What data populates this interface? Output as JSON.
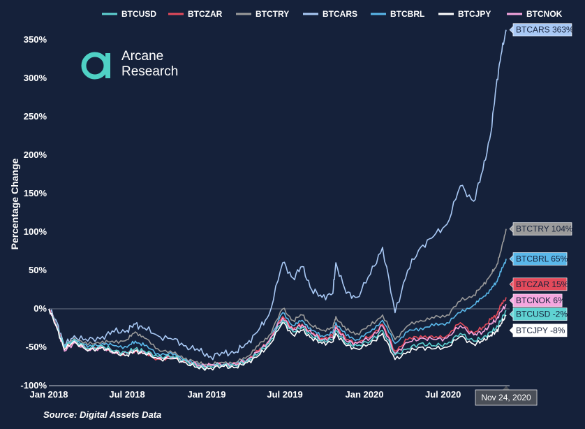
{
  "logo": {
    "line1": "Arcane",
    "line2": "Research"
  },
  "source": "Source: Digital Assets Data",
  "chart_data": {
    "type": "line",
    "title": "",
    "xlabel": "",
    "ylabel": "Percentage Change",
    "ylim": [
      -100,
      370
    ],
    "yticks": [
      -100,
      -50,
      0,
      50,
      100,
      150,
      200,
      250,
      300,
      350
    ],
    "ytick_labels": [
      "-100%",
      "-50%",
      "0%",
      "50%",
      "100%",
      "150%",
      "200%",
      "250%",
      "300%",
      "350%"
    ],
    "xlim": [
      "2018-01-01",
      "2020-12-02"
    ],
    "xticks": [
      "2018-01-01",
      "2018-07-01",
      "2019-01-01",
      "2019-07-01",
      "2020-01-01",
      "2020-07-01"
    ],
    "xtick_labels": [
      "Jan 2018",
      "Jul 2018",
      "Jan 2019",
      "Jul 2019",
      "Jan 2020",
      "Jul 2020"
    ],
    "crosshair_label": "Nov 24, 2020",
    "crosshair_date": "2020-11-24",
    "legend_position": "top",
    "zero_line": true,
    "x": [
      "2018-01-01",
      "2018-01-20",
      "2018-02-06",
      "2018-03-01",
      "2018-04-01",
      "2018-05-05",
      "2018-06-01",
      "2018-07-01",
      "2018-07-20",
      "2018-08-10",
      "2018-09-10",
      "2018-10-15",
      "2018-11-14",
      "2018-12-15",
      "2019-01-10",
      "2019-02-10",
      "2019-03-10",
      "2019-04-05",
      "2019-05-01",
      "2019-05-25",
      "2019-06-26",
      "2019-07-20",
      "2019-08-10",
      "2019-09-01",
      "2019-09-25",
      "2019-10-20",
      "2019-10-27",
      "2019-11-20",
      "2019-12-15",
      "2020-01-15",
      "2020-02-12",
      "2020-03-12",
      "2020-04-10",
      "2020-05-10",
      "2020-06-10",
      "2020-07-10",
      "2020-08-10",
      "2020-09-10",
      "2020-10-01",
      "2020-10-20",
      "2020-11-01",
      "2020-11-12",
      "2020-11-24"
    ],
    "series": [
      {
        "name": "BTCUSD",
        "color": "#5fd2d2",
        "label": "BTCUSD -2%",
        "label_bg": "#5fd2d2",
        "label_fg": "#15213a",
        "values": [
          0,
          -25,
          -50,
          -40,
          -52,
          -48,
          -55,
          -57,
          -52,
          -55,
          -62,
          -62,
          -68,
          -76,
          -75,
          -73,
          -74,
          -68,
          -58,
          -45,
          -15,
          -30,
          -24,
          -35,
          -42,
          -40,
          -28,
          -45,
          -48,
          -42,
          -28,
          -60,
          -52,
          -45,
          -48,
          -46,
          -32,
          -42,
          -38,
          -30,
          -25,
          -15,
          -2
        ]
      },
      {
        "name": "BTCZAR",
        "color": "#e34a5b",
        "label": "BTCZAR 15%",
        "label_bg": "#e34a5b",
        "label_fg": "#15213a",
        "values": [
          0,
          -23,
          -52,
          -42,
          -53,
          -50,
          -57,
          -58,
          -54,
          -58,
          -65,
          -64,
          -68,
          -74,
          -74,
          -72,
          -73,
          -66,
          -55,
          -42,
          -10,
          -26,
          -20,
          -32,
          -38,
          -36,
          -22,
          -40,
          -44,
          -36,
          -20,
          -55,
          -40,
          -35,
          -38,
          -35,
          -18,
          -32,
          -24,
          -14,
          -8,
          4,
          15
        ]
      },
      {
        "name": "BTCTRY",
        "color": "#9b9b9b",
        "label": "BTCTRY 104%",
        "label_bg": "#9b9b9b",
        "label_fg": "#15213a",
        "values": [
          0,
          -22,
          -50,
          -38,
          -47,
          -42,
          -44,
          -40,
          -30,
          -38,
          -52,
          -58,
          -64,
          -72,
          -72,
          -70,
          -70,
          -62,
          -48,
          -35,
          0,
          -15,
          -8,
          -22,
          -28,
          -25,
          -10,
          -28,
          -32,
          -22,
          -8,
          -40,
          -22,
          -15,
          -12,
          -8,
          10,
          18,
          30,
          45,
          55,
          75,
          104
        ]
      },
      {
        "name": "BTCARS",
        "color": "#a9c9f5",
        "label": "BTCARS 363%",
        "label_bg": "#a9c9f5",
        "label_fg": "#15213a",
        "values": [
          0,
          -18,
          -48,
          -35,
          -42,
          -36,
          -30,
          -28,
          -20,
          -25,
          -35,
          -40,
          -48,
          -55,
          -62,
          -58,
          -56,
          -45,
          -28,
          -8,
          60,
          40,
          55,
          25,
          15,
          20,
          60,
          20,
          15,
          45,
          80,
          -5,
          50,
          80,
          95,
          110,
          160,
          140,
          180,
          230,
          290,
          330,
          363
        ]
      },
      {
        "name": "BTCBRL",
        "color": "#5ab8ea",
        "label": "BTCBRL 65%",
        "label_bg": "#5ab8ea",
        "label_fg": "#15213a",
        "values": [
          0,
          -22,
          -50,
          -40,
          -50,
          -45,
          -48,
          -50,
          -42,
          -48,
          -58,
          -60,
          -66,
          -74,
          -74,
          -72,
          -72,
          -66,
          -56,
          -42,
          -5,
          -22,
          -15,
          -28,
          -35,
          -32,
          -18,
          -35,
          -40,
          -30,
          -15,
          -45,
          -30,
          -25,
          -22,
          -18,
          -5,
          5,
          15,
          25,
          35,
          48,
          65
        ]
      },
      {
        "name": "BTCJPY",
        "color": "#ffffff",
        "label": "BTCJPY -8%",
        "label_bg": "#ffffff",
        "label_fg": "#15213a",
        "values": [
          0,
          -26,
          -53,
          -42,
          -55,
          -50,
          -58,
          -60,
          -55,
          -58,
          -65,
          -65,
          -70,
          -78,
          -77,
          -75,
          -76,
          -70,
          -61,
          -48,
          -18,
          -34,
          -28,
          -38,
          -45,
          -43,
          -32,
          -48,
          -52,
          -46,
          -32,
          -66,
          -56,
          -50,
          -52,
          -50,
          -36,
          -46,
          -42,
          -34,
          -30,
          -20,
          -8
        ]
      },
      {
        "name": "BTCNOK",
        "color": "#f6a6df",
        "label": "BTCNOK 6%",
        "label_bg": "#f6a6df",
        "label_fg": "#15213a",
        "values": [
          0,
          -24,
          -55,
          -44,
          -54,
          -50,
          -57,
          -58,
          -54,
          -57,
          -64,
          -63,
          -68,
          -74,
          -73,
          -72,
          -73,
          -66,
          -56,
          -42,
          -12,
          -28,
          -21,
          -32,
          -40,
          -38,
          -24,
          -42,
          -45,
          -38,
          -22,
          -58,
          -44,
          -38,
          -40,
          -38,
          -22,
          -34,
          -30,
          -20,
          -14,
          -4,
          6
        ]
      }
    ],
    "end_labels": [
      {
        "series": "BTCARS",
        "y": 363
      },
      {
        "series": "BTCTRY",
        "y": 104
      },
      {
        "series": "BTCBRL",
        "y": 65
      },
      {
        "series": "BTCZAR",
        "y": 32
      },
      {
        "series": "BTCNOK",
        "y": 11
      },
      {
        "series": "BTCUSD",
        "y": -7
      },
      {
        "series": "BTCJPY",
        "y": -28
      }
    ]
  }
}
